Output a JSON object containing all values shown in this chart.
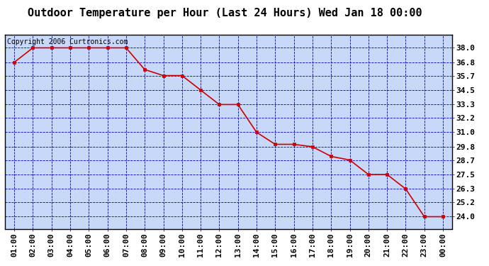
{
  "title": "Outdoor Temperature per Hour (Last 24 Hours) Wed Jan 18 00:00",
  "copyright": "Copyright 2006 Curtronics.com",
  "x_labels": [
    "01:00",
    "02:00",
    "03:00",
    "04:00",
    "05:00",
    "06:00",
    "07:00",
    "08:00",
    "09:00",
    "10:00",
    "11:00",
    "12:00",
    "13:00",
    "14:00",
    "15:00",
    "16:00",
    "17:00",
    "18:00",
    "19:00",
    "20:00",
    "21:00",
    "22:00",
    "23:00",
    "00:00"
  ],
  "x_values": [
    1,
    2,
    3,
    4,
    5,
    6,
    7,
    8,
    9,
    10,
    11,
    12,
    13,
    14,
    15,
    16,
    17,
    18,
    19,
    20,
    21,
    22,
    23,
    24
  ],
  "y_values": [
    36.8,
    38.0,
    38.0,
    38.0,
    38.0,
    38.0,
    38.0,
    36.2,
    35.7,
    35.7,
    34.5,
    33.3,
    33.3,
    31.0,
    30.0,
    30.0,
    29.8,
    29.0,
    28.7,
    27.5,
    27.5,
    26.3,
    24.0,
    24.0
  ],
  "y_min": 23.0,
  "y_max": 39.1,
  "y_ticks": [
    24.0,
    25.2,
    26.3,
    27.5,
    28.7,
    29.8,
    31.0,
    32.2,
    33.3,
    34.5,
    35.7,
    36.8,
    38.0
  ],
  "line_color": "#cc0000",
  "marker_color": "#cc0000",
  "bg_color": "#c8d8f8",
  "grid_color": "#0000bb",
  "outer_bg": "#ffffff",
  "title_fontsize": 11,
  "copyright_fontsize": 7,
  "tick_fontsize": 8
}
